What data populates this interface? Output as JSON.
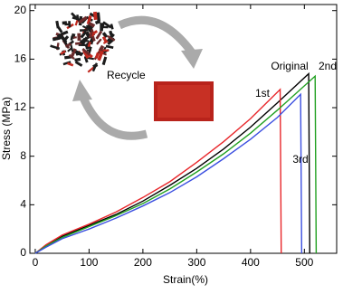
{
  "chart_data": {
    "type": "line",
    "x_label": "Strain(%)",
    "y_label": "Stress (MPa)",
    "annotations": [
      "Recycle"
    ],
    "xlim": [
      -10,
      560
    ],
    "ylim": [
      0,
      20.5
    ],
    "xticks": [
      0,
      100,
      200,
      300,
      400,
      500
    ],
    "yticks": [
      0,
      4,
      8,
      12,
      16,
      20
    ],
    "series": [
      {
        "name": "Original",
        "color": "#000000",
        "x": [
          0,
          20,
          50,
          100,
          150,
          200,
          250,
          300,
          350,
          400,
          450,
          508,
          510
        ],
        "values": [
          0,
          0.6,
          1.4,
          2.3,
          3.2,
          4.3,
          5.6,
          7,
          8.6,
          10.4,
          12.4,
          14.8,
          0
        ]
      },
      {
        "name": "1st",
        "color": "#e8262a",
        "x": [
          0,
          20,
          50,
          100,
          150,
          200,
          250,
          300,
          350,
          400,
          455,
          457
        ],
        "values": [
          0,
          0.7,
          1.5,
          2.4,
          3.4,
          4.6,
          5.9,
          7.5,
          9.2,
          11.1,
          13.5,
          0
        ]
      },
      {
        "name": "2nd",
        "color": "#21a021",
        "x": [
          0,
          20,
          50,
          100,
          150,
          200,
          250,
          300,
          350,
          400,
          450,
          520,
          522
        ],
        "values": [
          0,
          0.6,
          1.3,
          2.2,
          3.1,
          4.1,
          5.3,
          6.7,
          8.2,
          9.9,
          11.8,
          14.6,
          0
        ]
      },
      {
        "name": "3rd",
        "color": "#3b4fe0",
        "x": [
          0,
          20,
          50,
          100,
          150,
          200,
          250,
          300,
          350,
          400,
          450,
          493,
          495
        ],
        "values": [
          0,
          0.5,
          1.2,
          2.0,
          2.9,
          3.9,
          5.0,
          6.3,
          7.8,
          9.4,
          11.2,
          13.1,
          0
        ]
      }
    ]
  }
}
